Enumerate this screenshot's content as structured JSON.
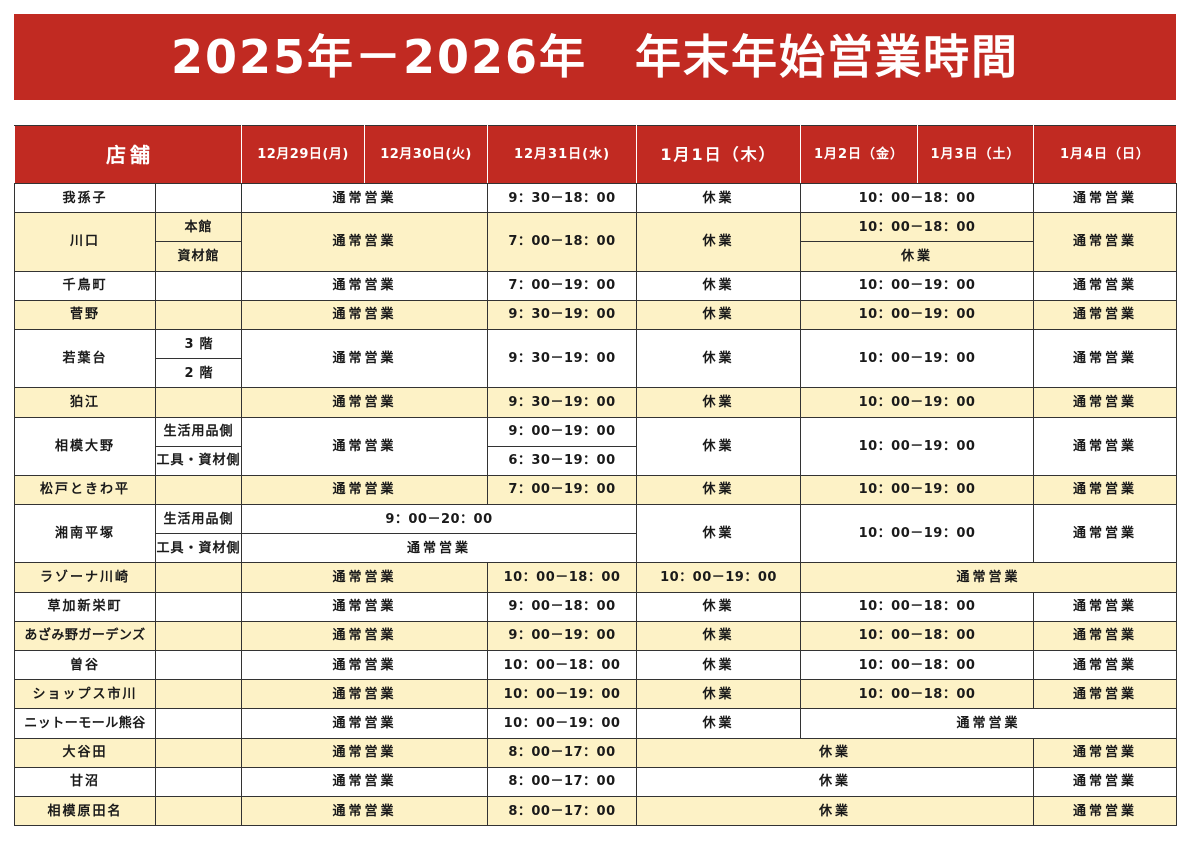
{
  "title": "2025年－2026年　年末年始営業時間",
  "colors": {
    "header_red": "#c12a22",
    "highlight_row": "#fdf2c6",
    "grid_line": "#333333"
  },
  "header": {
    "store": "店舗",
    "dec29": "12月29日(月)",
    "dec30": "12月30日(火)",
    "dec31": "12月31日(水)",
    "jan1": "1月1日（木）",
    "jan2": "1月2日（金）",
    "jan3": "1月3日（土）",
    "jan4": "1月4日（日）"
  },
  "stores": [
    {
      "name": "我孫子",
      "dec29_30": "通常営業",
      "dec31": "9：30－18：00",
      "jan1": "休業",
      "jan2_3": "10：00－18：00",
      "jan4": "通常営業"
    },
    {
      "name": "川口",
      "sub": [
        {
          "label": "本館",
          "jan2_3": "10：00－18：00"
        },
        {
          "label": "資材館",
          "jan2_3": "休業"
        }
      ],
      "dec29_30": "通常営業",
      "dec31": "7：00－18：00",
      "jan1": "休業",
      "jan4": "通常営業"
    },
    {
      "name": "千鳥町",
      "dec29_30": "通常営業",
      "dec31": "7：00－19：00",
      "jan1": "休業",
      "jan2_3": "10：00－19：00",
      "jan4": "通常営業"
    },
    {
      "name": "菅野",
      "dec29_30": "通常営業",
      "dec31": "9：30－19：00",
      "jan1": "休業",
      "jan2_3": "10：00－19：00",
      "jan4": "通常営業"
    },
    {
      "name": "若葉台",
      "sub": [
        {
          "label": "3階"
        },
        {
          "label": "2階"
        }
      ],
      "dec29_30": "通常営業",
      "dec31": "9：30－19：00",
      "jan1": "休業",
      "jan2_3": "10：00－19：00",
      "jan4": "通常営業"
    },
    {
      "name": "狛江",
      "dec29_30": "通常営業",
      "dec31": "9：30－19：00",
      "jan1": "休業",
      "jan2_3": "10：00－19：00",
      "jan4": "通常営業"
    },
    {
      "name": "相模大野",
      "sub": [
        {
          "label": "生活用品側",
          "dec31": "9：00－19：00"
        },
        {
          "label": "工具・資材側",
          "dec31": "6：30－19：00"
        }
      ],
      "dec29_30": "通常営業",
      "jan1": "休業",
      "jan2_3": "10：00－19：00",
      "jan4": "通常営業"
    },
    {
      "name": "松戸ときわ平",
      "dec29_30": "通常営業",
      "dec31": "7：00－19：00",
      "jan1": "休業",
      "jan2_3": "10：00－19：00",
      "jan4": "通常営業"
    },
    {
      "name": "湘南平塚",
      "sub": [
        {
          "label": "生活用品側",
          "dec29_31": "9：00－20：00"
        },
        {
          "label": "工具・資材側",
          "dec29_31": "通常営業"
        }
      ],
      "jan1": "休業",
      "jan2_3": "10：00－19：00",
      "jan4": "通常営業"
    },
    {
      "name": "ラゾーナ川崎",
      "dec29_30": "通常営業",
      "dec31": "10：00－18：00",
      "jan1": "10：00－19：00",
      "jan2_4": "通常営業"
    },
    {
      "name": "草加新栄町",
      "dec29_30": "通常営業",
      "dec31": "9：00－18：00",
      "jan1": "休業",
      "jan2_3": "10：00－18：00",
      "jan4": "通常営業"
    },
    {
      "name": "あざみ野ガーデンズ",
      "dec29_30": "通常営業",
      "dec31": "9：00－19：00",
      "jan1": "休業",
      "jan2_3": "10：00－18：00",
      "jan4": "通常営業"
    },
    {
      "name": "曽谷",
      "dec29_30": "通常営業",
      "dec31": "10：00－18：00",
      "jan1": "休業",
      "jan2_3": "10：00－18：00",
      "jan4": "通常営業"
    },
    {
      "name": "ショップス市川",
      "dec29_30": "通常営業",
      "dec31": "10：00－19：00",
      "jan1": "休業",
      "jan2_3": "10：00－18：00",
      "jan4": "通常営業"
    },
    {
      "name": "ニットーモール熊谷",
      "dec29_30": "通常営業",
      "dec31": "10：00－19：00",
      "jan1": "休業",
      "jan2_4": "通常営業"
    },
    {
      "name": "大谷田",
      "dec29_30": "通常営業",
      "dec31": "8：00－17：00",
      "jan1_3": "休業",
      "jan4": "通常営業"
    },
    {
      "name": "甘沼",
      "dec29_30": "通常営業",
      "dec31": "8：00－17：00",
      "jan1_3": "休業",
      "jan4": "通常営業"
    },
    {
      "name": "相模原田名",
      "dec29_30": "通常営業",
      "dec31": "8：00－17：00",
      "jan1_3": "休業",
      "jan4": "通常営業"
    }
  ]
}
